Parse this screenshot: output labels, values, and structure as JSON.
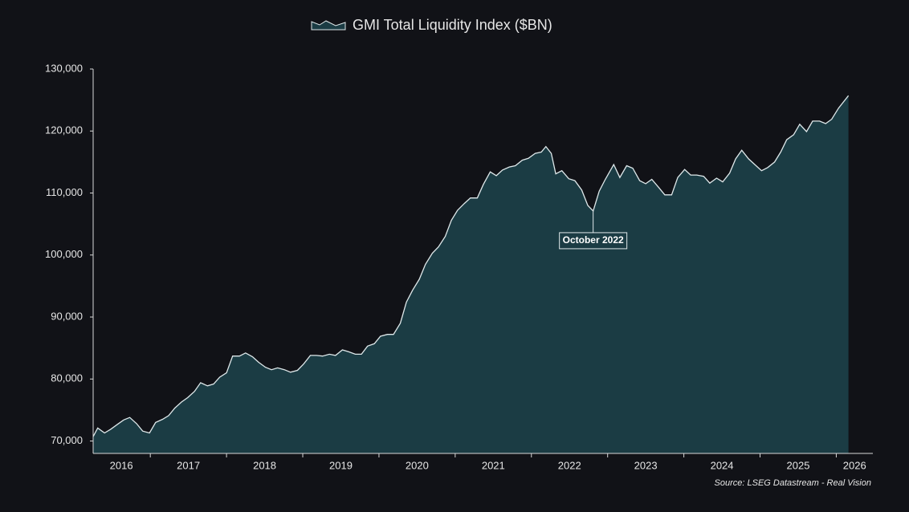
{
  "chart_data": {
    "type": "area",
    "legend_label": "GMI Total Liquidity Index ($BN)",
    "source": "Source: LSEG Datastream - Real Vision",
    "line_color": "#dfe8ea",
    "fill_color": "#1b3c44",
    "x": [
      2016.25,
      2016.31,
      2016.4,
      2016.48,
      2016.57,
      2016.65,
      2016.73,
      2016.82,
      2016.9,
      2016.99,
      2017.07,
      2017.16,
      2017.24,
      2017.32,
      2017.41,
      2017.49,
      2017.58,
      2017.66,
      2017.75,
      2017.83,
      2017.91,
      2018.0,
      2018.08,
      2018.17,
      2018.25,
      2018.34,
      2018.42,
      2018.51,
      2018.59,
      2018.67,
      2018.76,
      2018.84,
      2018.93,
      2019.01,
      2019.1,
      2019.18,
      2019.26,
      2019.35,
      2019.43,
      2019.52,
      2019.6,
      2019.69,
      2019.77,
      2019.85,
      2019.94,
      2020.02,
      2020.11,
      2020.19,
      2020.28,
      2020.36,
      2020.44,
      2020.53,
      2020.61,
      2020.7,
      2020.78,
      2020.87,
      2020.95,
      2021.03,
      2021.12,
      2021.2,
      2021.29,
      2021.37,
      2021.46,
      2021.54,
      2021.62,
      2021.71,
      2021.79,
      2021.88,
      2021.96,
      2022.05,
      2022.13,
      2022.19,
      2022.26,
      2022.32,
      2022.4,
      2022.49,
      2022.57,
      2022.66,
      2022.74,
      2022.81,
      2022.89,
      2022.97,
      2023.08,
      2023.16,
      2023.25,
      2023.33,
      2023.42,
      2023.5,
      2023.58,
      2023.67,
      2023.75,
      2023.84,
      2023.92,
      2024.01,
      2024.09,
      2024.17,
      2024.26,
      2024.34,
      2024.43,
      2024.51,
      2024.6,
      2024.68,
      2024.76,
      2024.85,
      2024.93,
      2025.02,
      2025.1,
      2025.19,
      2025.27,
      2025.35,
      2025.44,
      2025.52,
      2025.61,
      2025.69,
      2025.78,
      2025.86,
      2025.94,
      2026.03,
      2026.16
    ],
    "values": [
      70700,
      72100,
      71300,
      71900,
      72700,
      73400,
      73800,
      72800,
      71600,
      71300,
      73000,
      73500,
      74100,
      75300,
      76300,
      77000,
      78000,
      79400,
      78900,
      79200,
      80300,
      81000,
      83700,
      83700,
      84200,
      83600,
      82700,
      81900,
      81500,
      81800,
      81500,
      81100,
      81400,
      82400,
      83800,
      83800,
      83700,
      84000,
      83800,
      84700,
      84400,
      84000,
      84000,
      85300,
      85700,
      86900,
      87200,
      87200,
      89000,
      92400,
      94300,
      96100,
      98500,
      100300,
      101300,
      103000,
      105600,
      107200,
      108300,
      109200,
      109200,
      111400,
      113400,
      112800,
      113700,
      114200,
      114400,
      115300,
      115600,
      116400,
      116600,
      117500,
      116400,
      113100,
      113600,
      112300,
      112000,
      110500,
      108000,
      107100,
      110300,
      112200,
      114600,
      112500,
      114400,
      114000,
      112000,
      111500,
      112200,
      110900,
      109700,
      109700,
      112500,
      113800,
      112900,
      112900,
      112700,
      111600,
      112400,
      111800,
      113200,
      115500,
      116900,
      115500,
      114600,
      113600,
      114100,
      115000,
      116600,
      118600,
      119400,
      121100,
      119900,
      121600,
      121600,
      121200,
      121900,
      123700,
      125700
    ],
    "xlim": [
      2016.25,
      2026.48
    ],
    "xticks": [
      {
        "value": 2016.62,
        "label": "2016"
      },
      {
        "value": 2017.5,
        "label": "2017"
      },
      {
        "value": 2018.5,
        "label": "2018"
      },
      {
        "value": 2019.5,
        "label": "2019"
      },
      {
        "value": 2020.5,
        "label": "2020"
      },
      {
        "value": 2021.5,
        "label": "2021"
      },
      {
        "value": 2022.5,
        "label": "2022"
      },
      {
        "value": 2023.5,
        "label": "2023"
      },
      {
        "value": 2024.5,
        "label": "2024"
      },
      {
        "value": 2025.5,
        "label": "2025"
      },
      {
        "value": 2026.24,
        "label": "2026"
      }
    ],
    "xtick_marks": [
      2017,
      2018,
      2019,
      2020,
      2021,
      2022,
      2023,
      2024,
      2025,
      2026
    ],
    "ylim": [
      68000,
      130000
    ],
    "yticks": [
      {
        "value": 70000,
        "label": "70,000"
      },
      {
        "value": 80000,
        "label": "80,000"
      },
      {
        "value": 90000,
        "label": "90,000"
      },
      {
        "value": 100000,
        "label": "100,000"
      },
      {
        "value": 110000,
        "label": "110,000"
      },
      {
        "value": 120000,
        "label": "120,000"
      },
      {
        "value": 130000,
        "label": "130,000"
      }
    ],
    "annotations": [
      {
        "text": "October 2022",
        "index": 79
      }
    ]
  }
}
